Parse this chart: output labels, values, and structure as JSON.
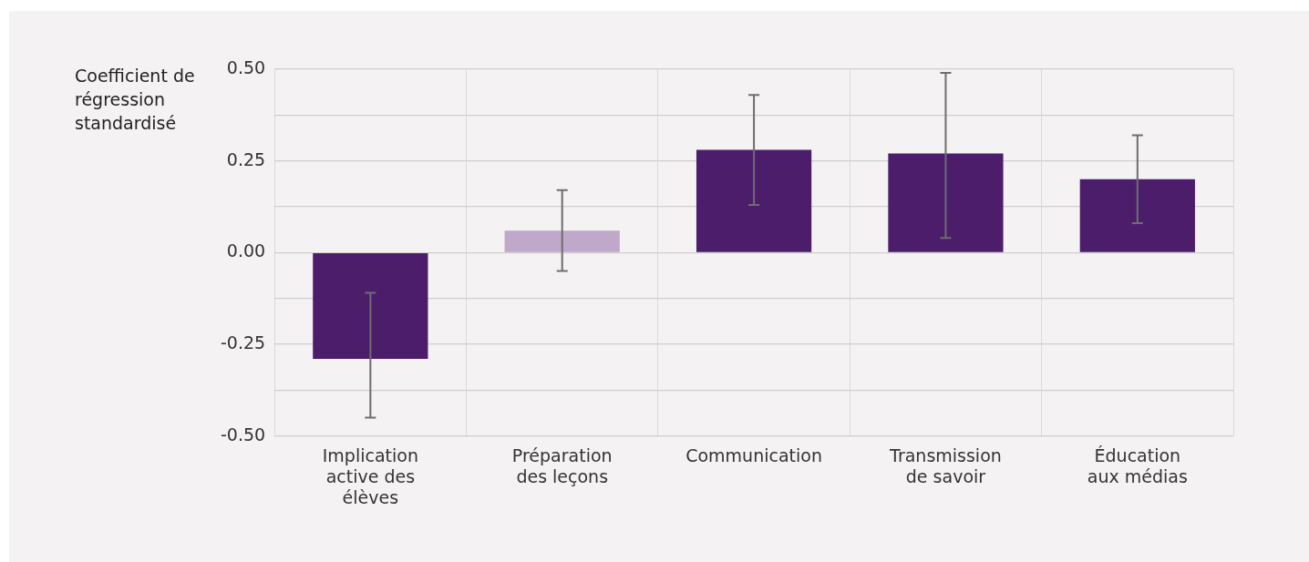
{
  "chart_data": {
    "type": "bar",
    "ylabel": "Coefficient de régression standardisé",
    "categories": [
      "Implication active des élèves",
      "Préparation des leçons",
      "Communication",
      "Transmission de savoir",
      "Éducation aux médias"
    ],
    "values": [
      -0.29,
      0.06,
      0.28,
      0.27,
      0.2
    ],
    "colors": [
      "#4b1d6b",
      "#bfa8c9",
      "#4b1d6b",
      "#4b1d6b",
      "#4b1d6b"
    ],
    "errors": [
      [
        -0.45,
        -0.11
      ],
      [
        -0.05,
        0.17
      ],
      [
        0.13,
        0.43
      ],
      [
        0.04,
        0.49
      ],
      [
        0.08,
        0.32
      ]
    ],
    "ylim": [
      -0.5,
      0.5
    ],
    "yticks": [
      {
        "value": -0.5,
        "label": "-0.50"
      },
      {
        "value": -0.375,
        "label": null
      },
      {
        "value": -0.25,
        "label": "-0.25"
      },
      {
        "value": -0.125,
        "label": null
      },
      {
        "value": 0,
        "label": "0.00"
      },
      {
        "value": 0.125,
        "label": null
      },
      {
        "value": 0.25,
        "label": "0.25"
      },
      {
        "value": 0.375,
        "label": null
      },
      {
        "value": 0.5,
        "label": "0.50"
      }
    ],
    "grid": true,
    "legend": false
  }
}
